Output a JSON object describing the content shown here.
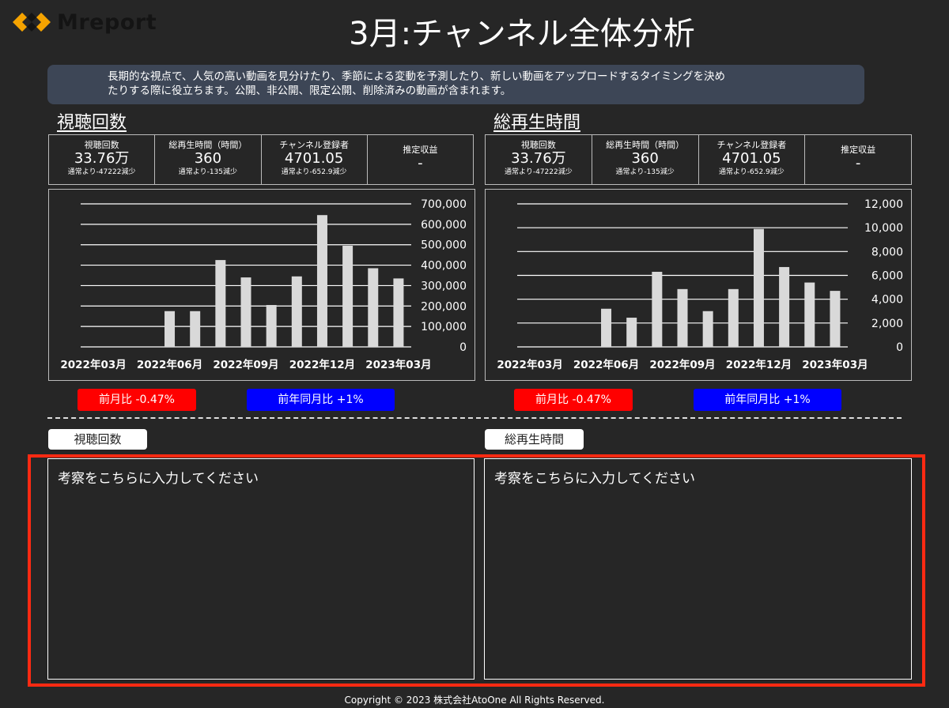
{
  "logo": {
    "text": "Mreport"
  },
  "title": "3月:チャンネル全体分析",
  "description": {
    "line1": "長期的な視点で、人気の高い動画を見分けたり、季節による変動を予測したり、新しい動画をアップロードするタイミングを決め",
    "line2": "たりする際に役立ちます。公開、非公開、限定公開、削除済みの動画が含まれます。"
  },
  "panels": [
    {
      "heading": "視聴回数",
      "kpis": [
        {
          "label": "視聴回数",
          "value": "33.76万",
          "note": "通常より-47222減少"
        },
        {
          "label": "総再生時間（時間）",
          "value": "360",
          "note": "通常より-135減少"
        },
        {
          "label": "チャンネル登録者",
          "value": "4701.05",
          "note": "通常より-652.9減少"
        },
        {
          "label": "推定収益",
          "value": "-",
          "note": ""
        }
      ],
      "mom": "前月比  -0.47%",
      "yoy": "前年同月比 +1%",
      "note_tag": "視聴回数",
      "note_placeholder": "考察をこちらに入力してください"
    },
    {
      "heading": "総再生時間",
      "kpis": [
        {
          "label": "視聴回数",
          "value": "33.76万",
          "note": "通常より-47222減少"
        },
        {
          "label": "総再生時間（時間）",
          "value": "360",
          "note": "通常より-135減少"
        },
        {
          "label": "チャンネル登録者",
          "value": "4701.05",
          "note": "通常より-652.9減少"
        },
        {
          "label": "推定収益",
          "value": "-",
          "note": ""
        }
      ],
      "mom": "前月比  -0.47%",
      "yoy": "前年同月比 +1%",
      "note_tag": "総再生時間",
      "note_placeholder": "考察をこちらに入力してください"
    }
  ],
  "colors": {
    "pill_red": "#ff0000",
    "pill_blue": "#0000ff",
    "highlight": "#ff2a12",
    "bar": "#d9d9d9"
  },
  "chart_data": [
    {
      "type": "bar",
      "categories": [
        "2022年03月",
        "2022年04月",
        "2022年05月",
        "2022年06月",
        "2022年07月",
        "2022年08月",
        "2022年09月",
        "2022年10月",
        "2022年11月",
        "2022年12月",
        "2023年01月",
        "2023年02月",
        "2023年03月"
      ],
      "values": [
        0,
        0,
        0,
        175000,
        175000,
        425000,
        340000,
        205000,
        345000,
        645000,
        495000,
        385000,
        335000
      ],
      "x_tick_labels": [
        "2022年03月",
        "2022年06月",
        "2022年09月",
        "2022年12月",
        "2023年03月"
      ],
      "y_tick_labels": [
        "700,000",
        "600,000",
        "500,000",
        "400,000",
        "300,000",
        "200,000",
        "100,000",
        "0"
      ],
      "ylim": [
        0,
        700000
      ],
      "grid": true
    },
    {
      "type": "bar",
      "categories": [
        "2022年03月",
        "2022年04月",
        "2022年05月",
        "2022年06月",
        "2022年07月",
        "2022年08月",
        "2022年09月",
        "2022年10月",
        "2022年11月",
        "2022年12月",
        "2023年01月",
        "2023年02月",
        "2023年03月"
      ],
      "values": [
        0,
        0,
        0,
        3200,
        2450,
        6300,
        4850,
        3000,
        4850,
        9900,
        6700,
        5400,
        4700
      ],
      "x_tick_labels": [
        "2022年03月",
        "2022年06月",
        "2022年09月",
        "2022年12月",
        "2023年03月"
      ],
      "y_tick_labels": [
        "12,000",
        "10,000",
        "8,000",
        "6,000",
        "4,000",
        "2,000",
        "0"
      ],
      "ylim": [
        0,
        12000
      ],
      "grid": true
    }
  ],
  "footer": {
    "copyright": "Copyright © 2023 株式会社AtoOne All Rights Reserved."
  }
}
